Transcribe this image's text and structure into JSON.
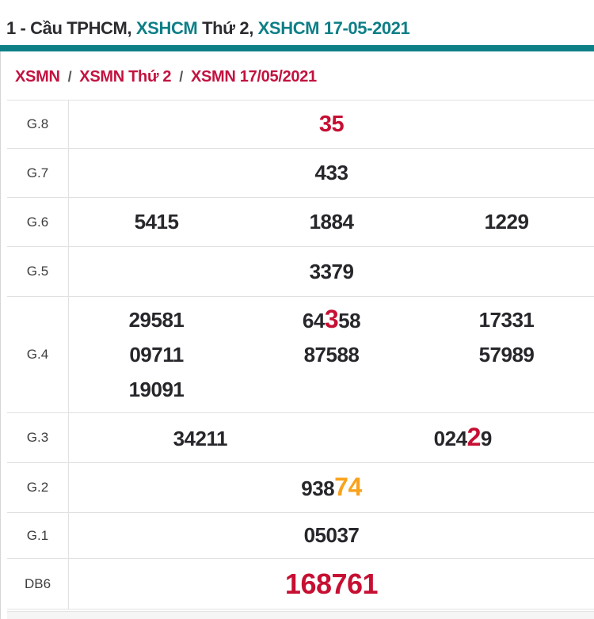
{
  "colors": {
    "accent_teal": "#0e7f87",
    "breadcrumb_red": "#c3123f",
    "highlight_red": "#c60f33",
    "highlight_orange": "#f9a21c",
    "number_dark": "#26262b"
  },
  "header": {
    "title_segments": [
      {
        "text": "1 - Cầu TPHCM, ",
        "color": "dark"
      },
      {
        "text": "XSHCM",
        "color": "teal"
      },
      {
        "text": " Thứ 2, ",
        "color": "dark"
      },
      {
        "text": "XSHCM 17-05-2021",
        "color": "teal"
      }
    ]
  },
  "breadcrumb": {
    "separator": "/",
    "items": [
      {
        "label": "XSMN"
      },
      {
        "label": "XSMN Thứ 2"
      },
      {
        "label": "XSMN 17/05/2021"
      }
    ]
  },
  "results": {
    "rows": [
      {
        "label": "G.8",
        "lines": [
          [
            [
              {
                "t": "35",
                "hl": "red",
                "size": "lg"
              }
            ]
          ]
        ]
      },
      {
        "label": "G.7",
        "lines": [
          [
            [
              {
                "t": "433"
              }
            ]
          ]
        ]
      },
      {
        "label": "G.6",
        "lines": [
          [
            [
              {
                "t": "5415"
              }
            ],
            [
              {
                "t": "1884"
              }
            ],
            [
              {
                "t": "1229"
              }
            ]
          ]
        ]
      },
      {
        "label": "G.5",
        "lines": [
          [
            [
              {
                "t": "3379"
              }
            ]
          ]
        ]
      },
      {
        "label": "G.4",
        "lines": [
          [
            [
              {
                "t": "29581"
              }
            ],
            [
              {
                "t": "64"
              },
              {
                "t": "3",
                "hl": "red",
                "size": "xl"
              },
              {
                "t": "58"
              }
            ],
            [
              {
                "t": "17331"
              }
            ]
          ],
          [
            [
              {
                "t": "09711"
              }
            ],
            [
              {
                "t": "87588"
              }
            ],
            [
              {
                "t": "57989"
              }
            ]
          ],
          [
            [
              {
                "t": "19091"
              }
            ],
            [],
            []
          ]
        ]
      },
      {
        "label": "G.3",
        "lines": [
          [
            [
              {
                "t": "34211"
              }
            ],
            [
              {
                "t": "024"
              },
              {
                "t": "2",
                "hl": "red",
                "size": "xl"
              },
              {
                "t": "9"
              }
            ]
          ]
        ]
      },
      {
        "label": "G.2",
        "lines": [
          [
            [
              {
                "t": "938"
              },
              {
                "t": "74",
                "hl": "orange",
                "size": "xl"
              }
            ]
          ]
        ]
      },
      {
        "label": "G.1",
        "lines": [
          [
            [
              {
                "t": "05037"
              }
            ]
          ]
        ]
      },
      {
        "label": "DB6",
        "lines": [
          [
            [
              {
                "t": "168761",
                "hl": "red",
                "size": "xxl"
              }
            ]
          ]
        ]
      }
    ]
  }
}
